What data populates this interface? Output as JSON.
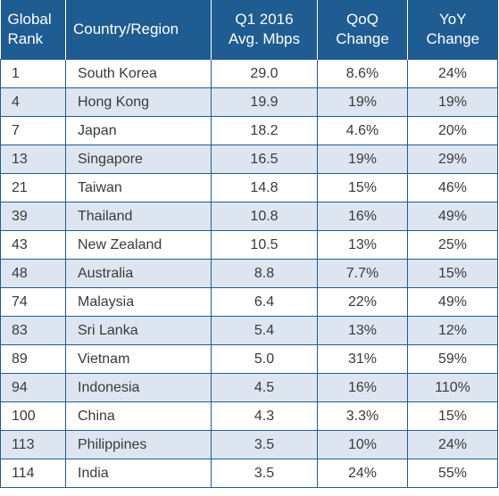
{
  "table": {
    "headers": {
      "rank": [
        "Global",
        "Rank"
      ],
      "country": "Country/Region",
      "speed": [
        "Q1 2016",
        "Avg. Mbps"
      ],
      "qoq": [
        "QoQ",
        "Change"
      ],
      "yoy": [
        "YoY",
        "Change"
      ]
    },
    "rows": [
      {
        "rank": "1",
        "country": "South Korea",
        "speed": "29.0",
        "qoq": "8.6%",
        "yoy": "24%"
      },
      {
        "rank": "4",
        "country": "Hong Kong",
        "speed": "19.9",
        "qoq": "19%",
        "yoy": "19%"
      },
      {
        "rank": "7",
        "country": "Japan",
        "speed": "18.2",
        "qoq": "4.6%",
        "yoy": "20%"
      },
      {
        "rank": "13",
        "country": "Singapore",
        "speed": "16.5",
        "qoq": "19%",
        "yoy": "29%"
      },
      {
        "rank": "21",
        "country": "Taiwan",
        "speed": "14.8",
        "qoq": "15%",
        "yoy": "46%"
      },
      {
        "rank": "39",
        "country": "Thailand",
        "speed": "10.8",
        "qoq": "16%",
        "yoy": "49%"
      },
      {
        "rank": "43",
        "country": "New Zealand",
        "speed": "10.5",
        "qoq": "13%",
        "yoy": "25%"
      },
      {
        "rank": "48",
        "country": "Australia",
        "speed": "8.8",
        "qoq": "7.7%",
        "yoy": "15%"
      },
      {
        "rank": "74",
        "country": "Malaysia",
        "speed": "6.4",
        "qoq": "22%",
        "yoy": "49%"
      },
      {
        "rank": "83",
        "country": "Sri Lanka",
        "speed": "5.4",
        "qoq": "13%",
        "yoy": "12%"
      },
      {
        "rank": "89",
        "country": "Vietnam",
        "speed": "5.0",
        "qoq": "31%",
        "yoy": "59%"
      },
      {
        "rank": "94",
        "country": "Indonesia",
        "speed": "4.5",
        "qoq": "16%",
        "yoy": "110%"
      },
      {
        "rank": "100",
        "country": "China",
        "speed": "4.3",
        "qoq": "3.3%",
        "yoy": "15%"
      },
      {
        "rank": "113",
        "country": "Philippines",
        "speed": "3.5",
        "qoq": "10%",
        "yoy": "24%"
      },
      {
        "rank": "114",
        "country": "India",
        "speed": "3.5",
        "qoq": "24%",
        "yoy": "55%"
      }
    ]
  },
  "colors": {
    "header_bg": "#1f5c91",
    "header_text": "#ffffff",
    "row_alt_bg": "#dde6f0",
    "border": "#1f5c91"
  }
}
